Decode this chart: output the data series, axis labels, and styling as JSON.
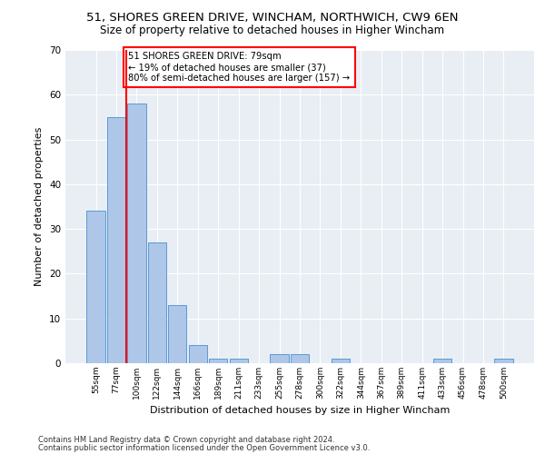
{
  "title_line1": "51, SHORES GREEN DRIVE, WINCHAM, NORTHWICH, CW9 6EN",
  "title_line2": "Size of property relative to detached houses in Higher Wincham",
  "xlabel": "Distribution of detached houses by size in Higher Wincham",
  "ylabel": "Number of detached properties",
  "bar_labels": [
    "55sqm",
    "77sqm",
    "100sqm",
    "122sqm",
    "144sqm",
    "166sqm",
    "189sqm",
    "211sqm",
    "233sqm",
    "255sqm",
    "278sqm",
    "300sqm",
    "322sqm",
    "344sqm",
    "367sqm",
    "389sqm",
    "411sqm",
    "433sqm",
    "456sqm",
    "478sqm",
    "500sqm"
  ],
  "bar_values": [
    34,
    55,
    58,
    27,
    13,
    4,
    1,
    1,
    0,
    2,
    2,
    0,
    1,
    0,
    0,
    0,
    0,
    1,
    0,
    0,
    1
  ],
  "bar_color": "#aec6e8",
  "bar_edgecolor": "#5b9bd5",
  "property_line_label": "51 SHORES GREEN DRIVE: 79sqm",
  "annotation_line2": "← 19% of detached houses are smaller (37)",
  "annotation_line3": "80% of semi-detached houses are larger (157) →",
  "annotation_box_color": "white",
  "annotation_box_edgecolor": "red",
  "vline_color": "red",
  "vline_x": 1.5,
  "ylim": [
    0,
    70
  ],
  "yticks": [
    0,
    10,
    20,
    30,
    40,
    50,
    60,
    70
  ],
  "background_color": "#e8eef4",
  "plot_background": "#e8eef4",
  "footer_line1": "Contains HM Land Registry data © Crown copyright and database right 2024.",
  "footer_line2": "Contains public sector information licensed under the Open Government Licence v3.0."
}
